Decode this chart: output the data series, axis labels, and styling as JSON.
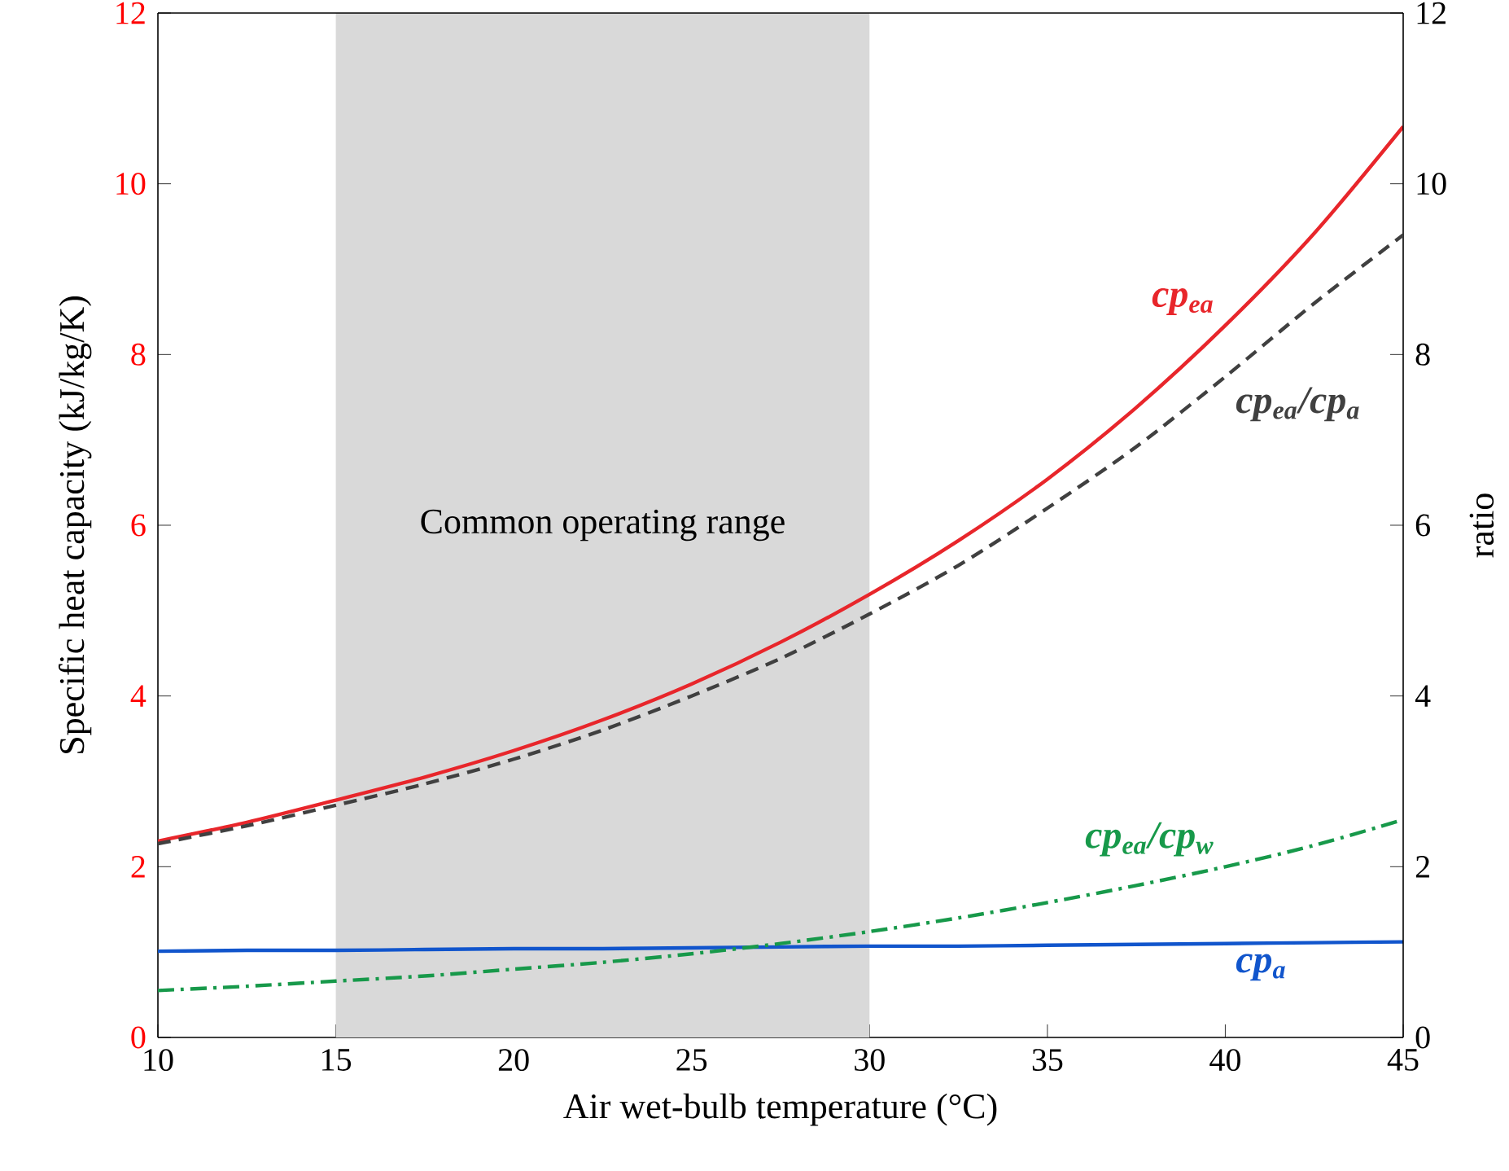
{
  "chart_data": {
    "type": "line",
    "xlabel": "Air wet-bulb temperature (°C)",
    "ylabel": "Specific heat capacity (kJ/kg/K)",
    "y2label": "ratio",
    "x": [
      10,
      12.5,
      15,
      17.5,
      20,
      22.5,
      25,
      27.5,
      30,
      32.5,
      35,
      37.5,
      40,
      42.5,
      45
    ],
    "xlim": [
      10,
      45
    ],
    "xticks": [
      10,
      15,
      20,
      25,
      30,
      35,
      40,
      45
    ],
    "ylim": [
      0,
      12
    ],
    "yticks": [
      0,
      2,
      4,
      6,
      8,
      10,
      12
    ],
    "y2lim": [
      0,
      12
    ],
    "y2ticks": [
      0,
      2,
      4,
      6,
      8,
      10,
      12
    ],
    "grid": false,
    "bands": [
      {
        "axis": "x",
        "from": 15,
        "to": 30,
        "label": "Common operating range",
        "color": "#d9d9d9"
      }
    ],
    "series": [
      {
        "name": "cp$_{ea}$",
        "color": "#e8262b",
        "line_style": "solid",
        "axis": "y",
        "values": [
          2.3,
          2.52,
          2.78,
          3.05,
          3.36,
          3.72,
          4.14,
          4.63,
          5.19,
          5.82,
          6.54,
          7.38,
          8.34,
          9.42,
          10.67
        ]
      },
      {
        "name": "cp$_{ea}$/cp$_{a}$",
        "color": "#404040",
        "line_style": "dashed",
        "axis": "y2",
        "values": [
          2.27,
          2.48,
          2.72,
          2.97,
          3.26,
          3.6,
          4.0,
          4.44,
          4.96,
          5.53,
          6.2,
          6.92,
          7.74,
          8.6,
          9.4
        ]
      },
      {
        "name": "cp$_{ea}$/cp$_{w}$",
        "color": "#17994a",
        "line_style": "dashdot",
        "axis": "y2",
        "values": [
          0.55,
          0.6,
          0.66,
          0.72,
          0.8,
          0.88,
          0.98,
          1.1,
          1.24,
          1.4,
          1.58,
          1.78,
          2.0,
          2.25,
          2.55
        ]
      },
      {
        "name": "cp$_{a}$",
        "color": "#1155cc",
        "line_style": "solid",
        "axis": "y",
        "values": [
          1.01,
          1.02,
          1.02,
          1.03,
          1.04,
          1.04,
          1.05,
          1.06,
          1.07,
          1.07,
          1.08,
          1.09,
          1.1,
          1.11,
          1.12
        ]
      }
    ]
  }
}
